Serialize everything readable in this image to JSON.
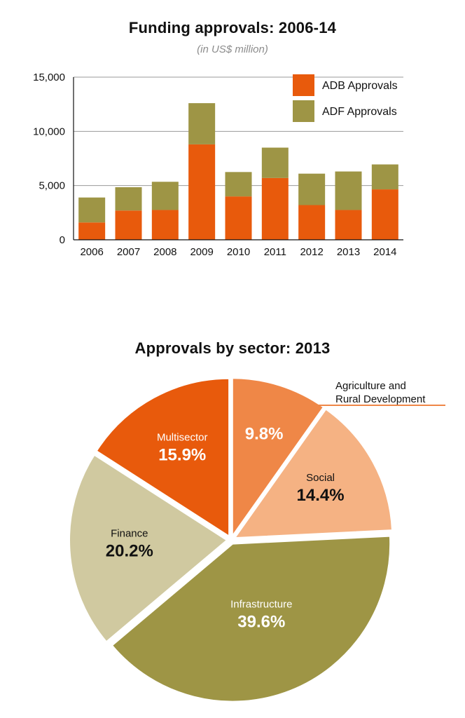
{
  "colors": {
    "adb": "#e85a0c",
    "adf": "#9e9545",
    "multisector": "#e85a0c",
    "agriculture": "#ef8747",
    "social": "#f5b283",
    "infrastructure": "#9e9545",
    "finance": "#d0c9a0",
    "gridline": "#999999",
    "axis": "#111111",
    "callout_line": "#ef8747"
  },
  "chart_data": [
    {
      "type": "bar",
      "stacked": true,
      "title": "Funding approvals: 2006-14",
      "subtitle": "(in US$ million)",
      "categories": [
        "2006",
        "2007",
        "2008",
        "2009",
        "2010",
        "2011",
        "2012",
        "2013",
        "2014"
      ],
      "series": [
        {
          "name": "ADB Approvals",
          "color": "#e85a0c",
          "values": [
            1600,
            2700,
            2750,
            8800,
            4000,
            5700,
            3200,
            2750,
            4650
          ]
        },
        {
          "name": "ADF Approvals",
          "color": "#9e9545",
          "values": [
            2300,
            2150,
            2600,
            3800,
            2250,
            2800,
            2900,
            3550,
            2300
          ]
        }
      ],
      "ylim": [
        0,
        15000
      ],
      "yticks": [
        0,
        5000,
        10000,
        15000
      ],
      "ytick_labels": [
        "0",
        "5,000",
        "10,000",
        "15,000"
      ],
      "grid": true,
      "legend_position": "top-right"
    },
    {
      "type": "pie",
      "title": "Approvals by sector: 2013",
      "slices": [
        {
          "name": "Agriculture and Rural Development",
          "label_line1": "Agriculture and",
          "label_line2": "Rural Development",
          "value": 9.8,
          "pct_label": "9.8%",
          "color": "#ef8747"
        },
        {
          "name": "Social",
          "value": 14.4,
          "pct_label": "14.4%",
          "color": "#f5b283"
        },
        {
          "name": "Infrastructure",
          "value": 39.6,
          "pct_label": "39.6%",
          "color": "#9e9545"
        },
        {
          "name": "Finance",
          "value": 20.2,
          "pct_label": "20.2%",
          "color": "#d0c9a0"
        },
        {
          "name": "Multisector",
          "value": 15.9,
          "pct_label": "15.9%",
          "color": "#e85a0c"
        }
      ]
    }
  ]
}
